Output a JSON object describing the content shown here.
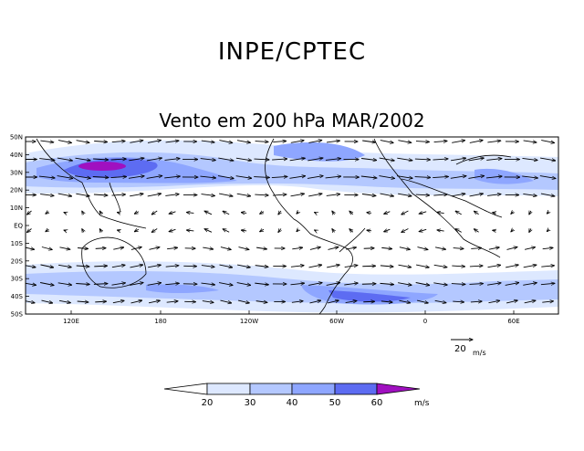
{
  "header": {
    "title": "INPE/CPTEC"
  },
  "map": {
    "subtitle": "Vento em 200 hPa MAR/2002",
    "lat_labels": [
      "50N",
      "40N",
      "30N",
      "20N",
      "10N",
      "EQ",
      "10S",
      "20S",
      "30S",
      "40S",
      "50S"
    ],
    "lon_labels": [
      "120E",
      "180",
      "120W",
      "60W",
      "0",
      "60E"
    ],
    "reference_vector": {
      "value": "20",
      "unit": "m/s"
    }
  },
  "colorbar": {
    "ticks": [
      "20",
      "30",
      "40",
      "50",
      "60"
    ],
    "unit": "m/s",
    "colors": [
      "#ffffff",
      "#dde8ff",
      "#b4c8ff",
      "#8ea6ff",
      "#5d6cf2",
      "#a010c0"
    ]
  }
}
